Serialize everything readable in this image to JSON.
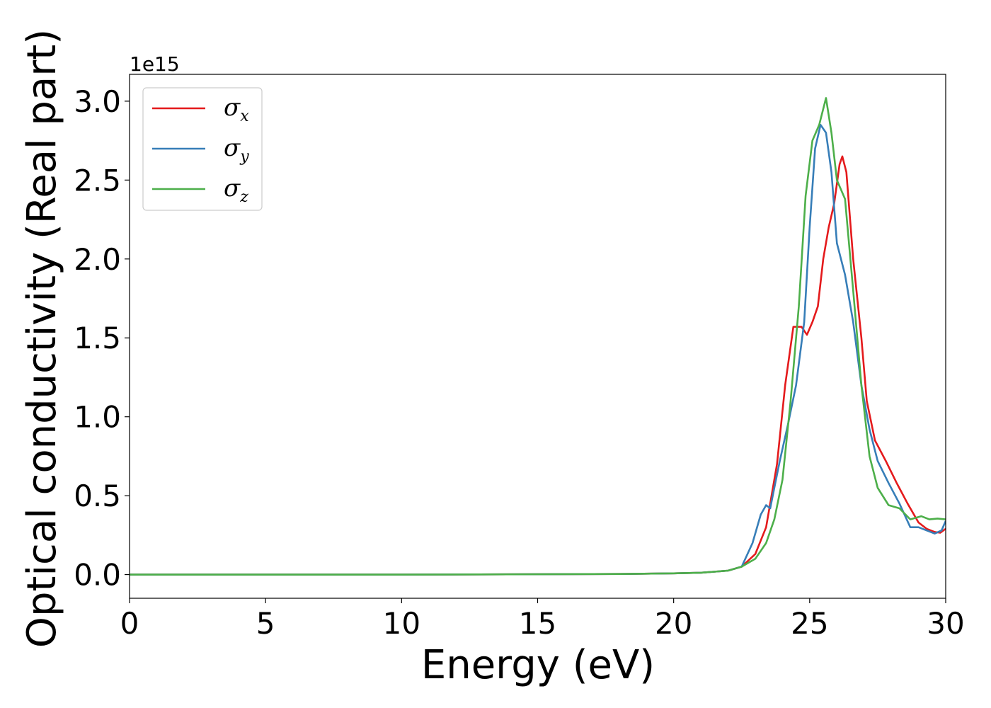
{
  "chart_data": {
    "type": "line",
    "title": "",
    "xlabel": "Energy (eV)",
    "ylabel": "Optical conductivity (Real part)",
    "y_offset_label": "1e15",
    "xlim": [
      0,
      30
    ],
    "ylim": [
      -0.15,
      3.17
    ],
    "x_ticks": [
      0,
      5,
      10,
      15,
      20,
      25,
      30
    ],
    "x_tick_labels": [
      "0",
      "5",
      "10",
      "15",
      "20",
      "25",
      "30"
    ],
    "y_ticks": [
      0.0,
      0.5,
      1.0,
      1.5,
      2.0,
      2.5,
      3.0
    ],
    "y_tick_labels": [
      "0.0",
      "0.5",
      "1.0",
      "1.5",
      "2.0",
      "2.5",
      "3.0"
    ],
    "grid": false,
    "legend_position": "top-left",
    "series": [
      {
        "name": "σx",
        "legend_symbol": "σ",
        "legend_subscript": "x",
        "color": "#e41a1c",
        "points": [
          [
            0,
            0
          ],
          [
            10,
            0
          ],
          [
            15,
            0.002
          ],
          [
            18,
            0.004
          ],
          [
            20,
            0.008
          ],
          [
            21,
            0.012
          ],
          [
            22,
            0.025
          ],
          [
            22.5,
            0.05
          ],
          [
            23,
            0.13
          ],
          [
            23.4,
            0.3
          ],
          [
            23.8,
            0.7
          ],
          [
            24.1,
            1.2
          ],
          [
            24.4,
            1.57
          ],
          [
            24.7,
            1.57
          ],
          [
            24.9,
            1.52
          ],
          [
            25.1,
            1.6
          ],
          [
            25.3,
            1.7
          ],
          [
            25.5,
            2.0
          ],
          [
            25.7,
            2.2
          ],
          [
            25.9,
            2.35
          ],
          [
            26.1,
            2.6
          ],
          [
            26.2,
            2.65
          ],
          [
            26.35,
            2.55
          ],
          [
            26.6,
            2.0
          ],
          [
            26.9,
            1.5
          ],
          [
            27.1,
            1.1
          ],
          [
            27.4,
            0.85
          ],
          [
            27.8,
            0.72
          ],
          [
            28.2,
            0.58
          ],
          [
            28.6,
            0.45
          ],
          [
            29.0,
            0.33
          ],
          [
            29.3,
            0.29
          ],
          [
            29.6,
            0.27
          ],
          [
            29.8,
            0.265
          ],
          [
            30,
            0.29
          ]
        ]
      },
      {
        "name": "σy",
        "legend_symbol": "σ",
        "legend_subscript": "y",
        "color": "#377eb8",
        "points": [
          [
            0,
            0
          ],
          [
            10,
            0
          ],
          [
            15,
            0.002
          ],
          [
            18,
            0.004
          ],
          [
            20,
            0.008
          ],
          [
            21,
            0.012
          ],
          [
            22,
            0.025
          ],
          [
            22.5,
            0.05
          ],
          [
            22.9,
            0.2
          ],
          [
            23.2,
            0.38
          ],
          [
            23.4,
            0.44
          ],
          [
            23.55,
            0.42
          ],
          [
            23.7,
            0.55
          ],
          [
            23.9,
            0.72
          ],
          [
            24.2,
            0.95
          ],
          [
            24.5,
            1.2
          ],
          [
            24.8,
            1.6
          ],
          [
            25.0,
            2.2
          ],
          [
            25.2,
            2.7
          ],
          [
            25.4,
            2.85
          ],
          [
            25.6,
            2.8
          ],
          [
            25.8,
            2.55
          ],
          [
            26.0,
            2.1
          ],
          [
            26.3,
            1.9
          ],
          [
            26.6,
            1.6
          ],
          [
            26.9,
            1.2
          ],
          [
            27.2,
            0.92
          ],
          [
            27.5,
            0.72
          ],
          [
            27.9,
            0.58
          ],
          [
            28.3,
            0.45
          ],
          [
            28.7,
            0.3
          ],
          [
            29.0,
            0.3
          ],
          [
            29.3,
            0.28
          ],
          [
            29.6,
            0.26
          ],
          [
            29.85,
            0.28
          ],
          [
            30,
            0.34
          ]
        ]
      },
      {
        "name": "σz",
        "legend_symbol": "σ",
        "legend_subscript": "z",
        "color": "#4daf4a",
        "points": [
          [
            0,
            0
          ],
          [
            10,
            0
          ],
          [
            15,
            0.002
          ],
          [
            18,
            0.004
          ],
          [
            20,
            0.008
          ],
          [
            21,
            0.012
          ],
          [
            22,
            0.025
          ],
          [
            22.5,
            0.05
          ],
          [
            23,
            0.1
          ],
          [
            23.4,
            0.2
          ],
          [
            23.7,
            0.35
          ],
          [
            24.0,
            0.6
          ],
          [
            24.3,
            1.1
          ],
          [
            24.6,
            1.7
          ],
          [
            24.85,
            2.4
          ],
          [
            25.1,
            2.75
          ],
          [
            25.35,
            2.85
          ],
          [
            25.6,
            3.02
          ],
          [
            25.8,
            2.8
          ],
          [
            26.0,
            2.5
          ],
          [
            26.3,
            2.38
          ],
          [
            26.6,
            1.8
          ],
          [
            26.9,
            1.2
          ],
          [
            27.2,
            0.75
          ],
          [
            27.5,
            0.55
          ],
          [
            27.9,
            0.44
          ],
          [
            28.3,
            0.42
          ],
          [
            28.7,
            0.35
          ],
          [
            29.1,
            0.37
          ],
          [
            29.4,
            0.35
          ],
          [
            29.7,
            0.355
          ],
          [
            30,
            0.35
          ]
        ]
      }
    ]
  }
}
